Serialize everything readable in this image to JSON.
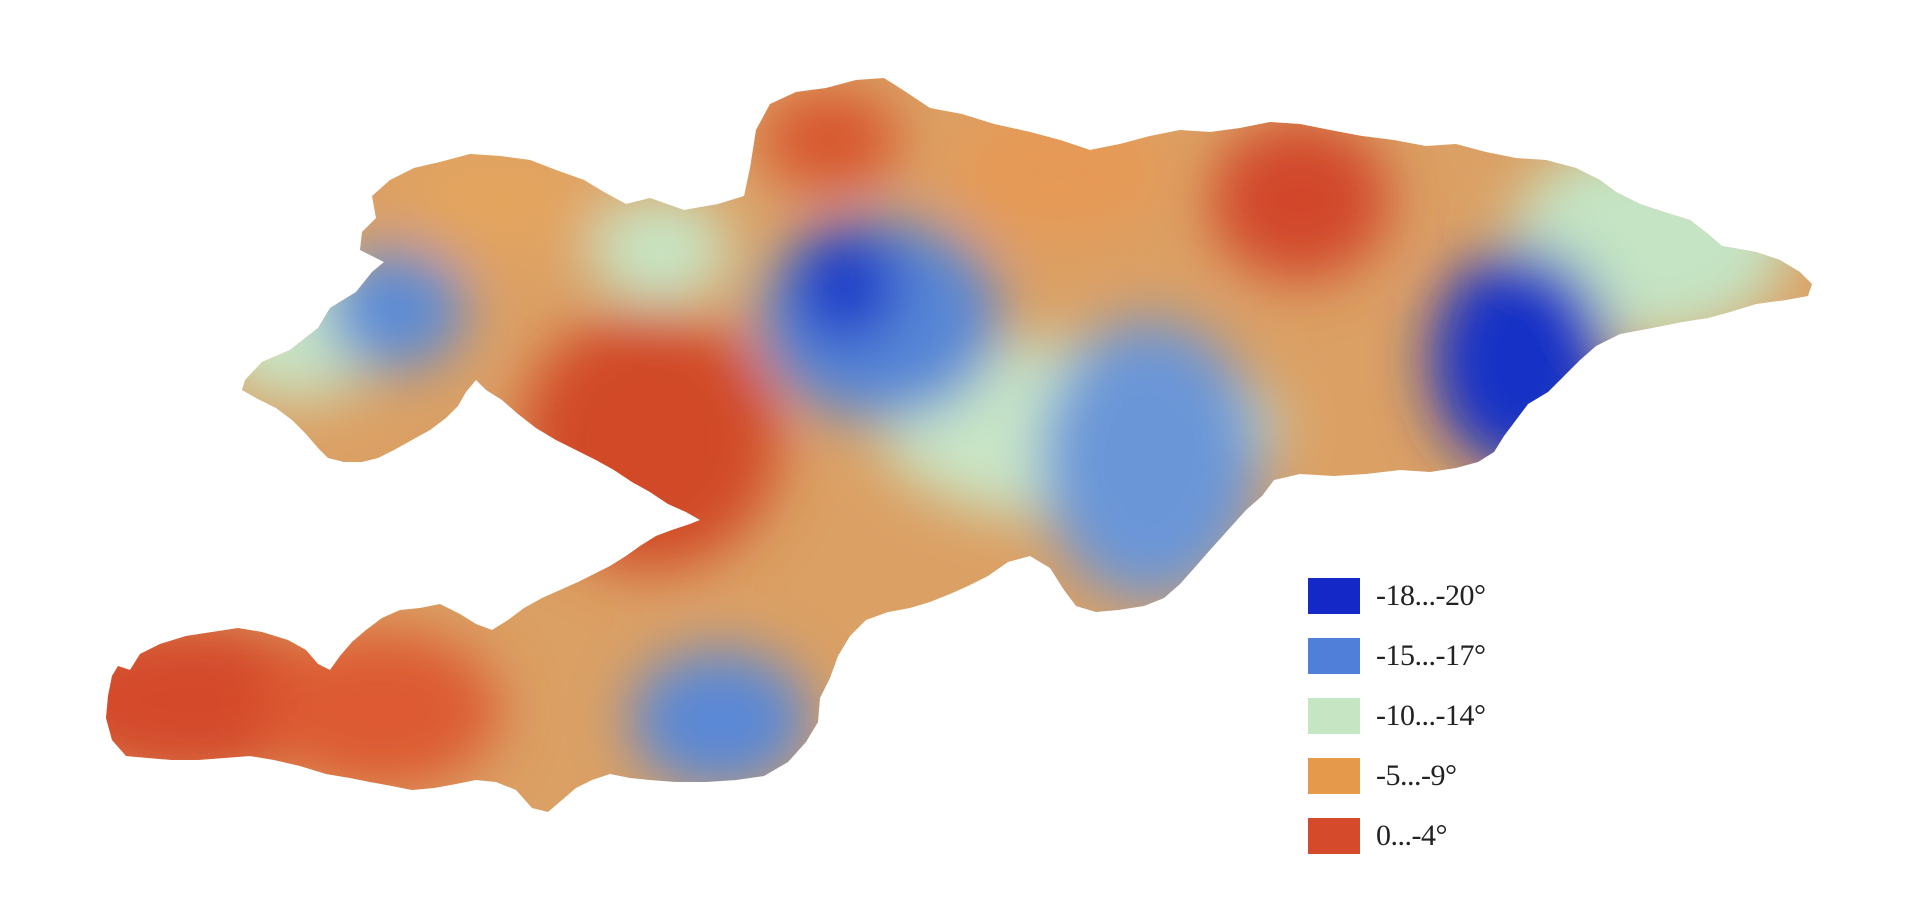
{
  "map": {
    "colors": {
      "outside": "#ffffff",
      "base": "#dba064"
    },
    "zones": [
      {
        "kind": "warm",
        "color": "#d44a2a"
      },
      {
        "kind": "warm",
        "color": "#dd5a32"
      },
      {
        "kind": "warm",
        "color": "#d14a28"
      },
      {
        "kind": "warm",
        "color": "#d2472a"
      },
      {
        "kind": "warm",
        "color": "#d8552f"
      },
      {
        "kind": "mild",
        "color": "#e69a56"
      },
      {
        "kind": "mild",
        "color": "#e3a45e"
      },
      {
        "kind": "cool",
        "color": "#c7e5c4"
      },
      {
        "kind": "cool",
        "color": "#c4e4c4"
      },
      {
        "kind": "cool",
        "color": "#c9e6c6"
      },
      {
        "kind": "cool",
        "color": "#c8e5c4"
      },
      {
        "kind": "cold",
        "color": "#5b8bd6"
      },
      {
        "kind": "cold",
        "color": "#5686d6"
      },
      {
        "kind": "cold",
        "color": "#6a96d8"
      },
      {
        "kind": "cold",
        "color": "#5a88d6"
      },
      {
        "kind": "coldest",
        "color": "#1b3ec9"
      },
      {
        "kind": "coldest",
        "color": "#1530c6"
      }
    ]
  },
  "legend": {
    "items": [
      {
        "label": "-18...-20°",
        "color": "#1428c8"
      },
      {
        "label": "-15...-17°",
        "color": "#4f7fd8"
      },
      {
        "label": "-10...-14°",
        "color": "#c6e5c3"
      },
      {
        "label": "-5...-9°",
        "color": "#e49a4a"
      },
      {
        "label": "0...-4°",
        "color": "#d64a2c"
      }
    ]
  }
}
